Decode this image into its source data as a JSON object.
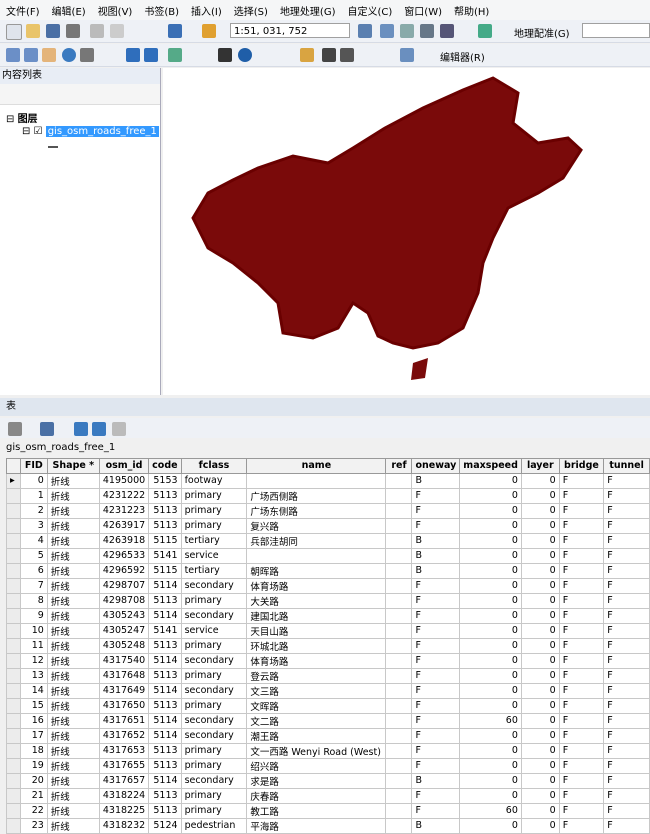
{
  "menu": [
    "文件(F)",
    "编辑(E)",
    "视图(V)",
    "书签(B)",
    "插入(I)",
    "选择(S)",
    "地理处理(G)",
    "自定义(C)",
    "窗口(W)",
    "帮助(H)"
  ],
  "toolbar": {
    "scale": "1:51, 031, 752",
    "georef": "地理配准(G)",
    "editor": "编辑器(R)"
  },
  "toc": {
    "title": "内容列表",
    "group": "图层",
    "layer": "gis_osm_roads_free_1"
  },
  "table_panel": {
    "title": "表",
    "table_name": "gis_osm_roads_free_1"
  },
  "table": {
    "columns": [
      "FID",
      "Shape *",
      "osm_id",
      "code",
      "fclass",
      "name",
      "ref",
      "oneway",
      "maxspeed",
      "layer",
      "bridge",
      "tunnel"
    ],
    "rows": [
      [
        0,
        "折线",
        4195000,
        5153,
        "footway",
        null,
        null,
        "B",
        0,
        0,
        "F",
        "F"
      ],
      [
        1,
        "折线",
        4231222,
        5113,
        "primary",
        "广场西侧路",
        null,
        "F",
        0,
        0,
        "F",
        "F"
      ],
      [
        2,
        "折线",
        4231223,
        5113,
        "primary",
        "广场东侧路",
        null,
        "F",
        0,
        0,
        "F",
        "F"
      ],
      [
        3,
        "折线",
        4263917,
        5113,
        "primary",
        "复兴路",
        null,
        "F",
        0,
        0,
        "F",
        "F"
      ],
      [
        4,
        "折线",
        4263918,
        5115,
        "tertiary",
        "兵部洼胡同",
        null,
        "B",
        0,
        0,
        "F",
        "F"
      ],
      [
        5,
        "折线",
        4296533,
        5141,
        "service",
        null,
        null,
        "B",
        0,
        0,
        "F",
        "F"
      ],
      [
        6,
        "折线",
        4296592,
        5115,
        "tertiary",
        "朝晖路",
        null,
        "B",
        0,
        0,
        "F",
        "F"
      ],
      [
        7,
        "折线",
        4298707,
        5114,
        "secondary",
        "体育场路",
        null,
        "F",
        0,
        0,
        "F",
        "F"
      ],
      [
        8,
        "折线",
        4298708,
        5113,
        "primary",
        "大关路",
        null,
        "F",
        0,
        0,
        "F",
        "F"
      ],
      [
        9,
        "折线",
        4305243,
        5114,
        "secondary",
        "建国北路",
        null,
        "F",
        0,
        0,
        "F",
        "F"
      ],
      [
        10,
        "折线",
        4305247,
        5141,
        "service",
        "天目山路",
        null,
        "F",
        0,
        0,
        "F",
        "F"
      ],
      [
        11,
        "折线",
        4305248,
        5113,
        "primary",
        "环城北路",
        null,
        "F",
        0,
        0,
        "F",
        "F"
      ],
      [
        12,
        "折线",
        4317540,
        5114,
        "secondary",
        "体育场路",
        null,
        "F",
        0,
        0,
        "F",
        "F"
      ],
      [
        13,
        "折线",
        4317648,
        5113,
        "primary",
        "登云路",
        null,
        "F",
        0,
        0,
        "F",
        "F"
      ],
      [
        14,
        "折线",
        4317649,
        5114,
        "secondary",
        "文三路",
        null,
        "F",
        0,
        0,
        "F",
        "F"
      ],
      [
        15,
        "折线",
        4317650,
        5113,
        "primary",
        "文晖路",
        null,
        "F",
        0,
        0,
        "F",
        "F"
      ],
      [
        16,
        "折线",
        4317651,
        5114,
        "secondary",
        "文二路",
        null,
        "F",
        60,
        0,
        "F",
        "F"
      ],
      [
        17,
        "折线",
        4317652,
        5114,
        "secondary",
        "潮王路",
        null,
        "F",
        0,
        0,
        "F",
        "F"
      ],
      [
        18,
        "折线",
        4317653,
        5113,
        "primary",
        "文一西路 Wenyi Road (West)",
        null,
        "F",
        0,
        0,
        "F",
        "F"
      ],
      [
        19,
        "折线",
        4317655,
        5113,
        "primary",
        "绍兴路",
        null,
        "F",
        0,
        0,
        "F",
        "F"
      ],
      [
        20,
        "折线",
        4317657,
        5114,
        "secondary",
        "求是路",
        null,
        "B",
        0,
        0,
        "F",
        "F"
      ],
      [
        21,
        "折线",
        4318224,
        5113,
        "primary",
        "庆春路",
        null,
        "F",
        0,
        0,
        "F",
        "F"
      ],
      [
        22,
        "折线",
        4318225,
        5113,
        "primary",
        "教工路",
        null,
        "F",
        60,
        0,
        "F",
        "F"
      ],
      [
        23,
        "折线",
        4318232,
        5124,
        "pedestrian",
        "平海路",
        null,
        "B",
        0,
        0,
        "F",
        "F"
      ]
    ]
  }
}
